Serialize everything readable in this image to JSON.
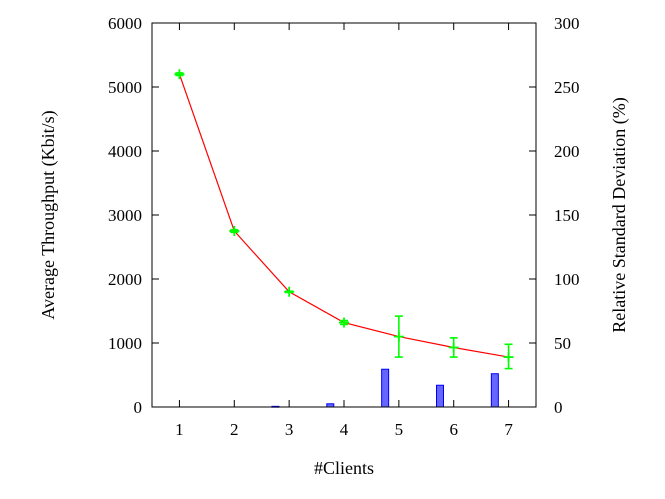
{
  "chart_data": {
    "type": "line",
    "title": "",
    "xlabel": "#Clients",
    "ylabel": "Average Throughput (Kbit/s)",
    "y2label": "Relative Standard Deviation (%)",
    "x": [
      1,
      2,
      3,
      4,
      5,
      6,
      7
    ],
    "x_ticks": [
      "1",
      "2",
      "3",
      "4",
      "5",
      "6",
      "7"
    ],
    "xlim": [
      0.5,
      7.5
    ],
    "ylim": [
      0,
      6000
    ],
    "y_ticks": [
      "0",
      "1000",
      "2000",
      "3000",
      "4000",
      "5000",
      "6000"
    ],
    "y2lim": [
      0,
      300
    ],
    "y2_ticks": [
      "0",
      "50",
      "100",
      "150",
      "200",
      "250",
      "300"
    ],
    "grid": false,
    "legend": "none",
    "series": [
      {
        "axis": "left",
        "kind": "line",
        "color": "#ff0000",
        "values": [
          5200,
          2750,
          1800,
          1320,
          1100,
          930,
          780
        ]
      },
      {
        "axis": "left",
        "kind": "errorbar",
        "color": "#00ff00",
        "values": [
          5200,
          2750,
          1800,
          1320,
          1100,
          930,
          780
        ],
        "error_low": [
          5180,
          2730,
          1790,
          1290,
          780,
          780,
          600
        ],
        "error_high": [
          5220,
          2770,
          1810,
          1350,
          1420,
          1080,
          980
        ]
      },
      {
        "axis": "right",
        "kind": "bar",
        "color": "#0000ff",
        "fill": "#6666ff",
        "x": [
          2.75,
          3.75,
          4.75,
          5.75,
          6.75
        ],
        "values": [
          0.5,
          2.5,
          29.5,
          17,
          26
        ]
      }
    ]
  }
}
